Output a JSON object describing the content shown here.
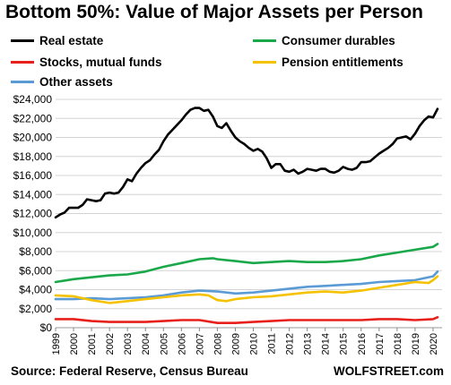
{
  "header": {
    "title": "Bottom 50%: Value of Major Assets per Person"
  },
  "footer": {
    "source": "Source: Federal Reserve, Census Bureau",
    "brand": "WOLFSTREET.com"
  },
  "chart_data": {
    "type": "line",
    "title": "Bottom 50%: Value of Major Assets per Person",
    "xlabel": "",
    "ylabel": "",
    "ylim": [
      0,
      24000
    ],
    "xlim": [
      1999,
      2020.5
    ],
    "yticks": [
      0,
      2000,
      4000,
      6000,
      8000,
      10000,
      12000,
      14000,
      16000,
      18000,
      20000,
      22000,
      24000
    ],
    "ytick_labels": [
      "$0",
      "$2,000",
      "$4,000",
      "$6,000",
      "$8,000",
      "$10,000",
      "$12,000",
      "$14,000",
      "$16,000",
      "$18,000",
      "$20,000",
      "$22,000",
      "$24,000"
    ],
    "xticks": [
      1999,
      2000,
      2001,
      2002,
      2003,
      2004,
      2005,
      2006,
      2007,
      2008,
      2009,
      2010,
      2011,
      2012,
      2013,
      2014,
      2015,
      2016,
      2017,
      2018,
      2019,
      2020
    ],
    "xtick_labels": [
      "1999",
      "2000",
      "2001",
      "2002",
      "2003",
      "2004",
      "2005",
      "2006",
      "2007",
      "2008",
      "2009",
      "2010",
      "2011",
      "2012",
      "2013",
      "2014",
      "2015",
      "2016",
      "2017",
      "2018",
      "2019",
      "2020"
    ],
    "grid": true,
    "legend_position": "top",
    "series": [
      {
        "name": "Real estate",
        "color": "#000000",
        "x": [
          1999.0,
          1999.25,
          1999.5,
          1999.75,
          2000.0,
          2000.25,
          2000.5,
          2000.75,
          2001.0,
          2001.25,
          2001.5,
          2001.75,
          2002.0,
          2002.25,
          2002.5,
          2002.75,
          2003.0,
          2003.25,
          2003.5,
          2003.75,
          2004.0,
          2004.25,
          2004.5,
          2004.75,
          2005.0,
          2005.25,
          2005.5,
          2005.75,
          2006.0,
          2006.25,
          2006.5,
          2006.75,
          2007.0,
          2007.25,
          2007.5,
          2007.75,
          2008.0,
          2008.25,
          2008.5,
          2008.75,
          2009.0,
          2009.25,
          2009.5,
          2009.75,
          2010.0,
          2010.25,
          2010.5,
          2010.75,
          2011.0,
          2011.25,
          2011.5,
          2011.75,
          2012.0,
          2012.25,
          2012.5,
          2012.75,
          2013.0,
          2013.25,
          2013.5,
          2013.75,
          2014.0,
          2014.25,
          2014.5,
          2014.75,
          2015.0,
          2015.25,
          2015.5,
          2015.75,
          2016.0,
          2016.25,
          2016.5,
          2016.75,
          2017.0,
          2017.25,
          2017.5,
          2017.75,
          2018.0,
          2018.25,
          2018.5,
          2018.75,
          2019.0,
          2019.25,
          2019.5,
          2019.75,
          2020.0,
          2020.25
        ],
        "values": [
          11600,
          11900,
          12100,
          12600,
          12600,
          12600,
          12900,
          13500,
          13400,
          13300,
          13400,
          14100,
          14200,
          14100,
          14200,
          14800,
          15600,
          15400,
          16200,
          16800,
          17300,
          17600,
          18200,
          18700,
          19600,
          20300,
          20800,
          21300,
          21800,
          22400,
          22900,
          23100,
          23100,
          22800,
          22900,
          22200,
          21200,
          21000,
          21500,
          20700,
          20000,
          19600,
          19300,
          18900,
          18600,
          18800,
          18500,
          17800,
          16800,
          17200,
          17200,
          16500,
          16400,
          16600,
          16200,
          16400,
          16700,
          16600,
          16500,
          16700,
          16700,
          16400,
          16300,
          16500,
          16900,
          16700,
          16600,
          16800,
          17400,
          17400,
          17500,
          17900,
          18300,
          18600,
          18900,
          19300,
          19900,
          20000,
          20100,
          19800,
          20400,
          21200,
          21800,
          22200,
          22100,
          23000
        ]
      },
      {
        "name": "Consumer durables",
        "color": "#1aa84a",
        "x": [
          1999,
          2000,
          2001,
          2002,
          2003,
          2004,
          2005,
          2006,
          2007,
          2007.75,
          2008,
          2009,
          2010,
          2011,
          2012,
          2013,
          2014,
          2015,
          2016,
          2017,
          2018,
          2019,
          2020,
          2020.25
        ],
        "values": [
          4800,
          5100,
          5300,
          5500,
          5600,
          5900,
          6400,
          6800,
          7200,
          7300,
          7200,
          7000,
          6800,
          6900,
          7000,
          6900,
          6900,
          7000,
          7200,
          7600,
          7900,
          8200,
          8500,
          8800
        ]
      },
      {
        "name": "Stocks, mutual funds",
        "color": "#e8201c",
        "x": [
          1999,
          2000,
          2001,
          2002,
          2003,
          2004,
          2005,
          2006,
          2007,
          2008,
          2009,
          2010,
          2011,
          2012,
          2013,
          2014,
          2015,
          2016,
          2017,
          2018,
          2019,
          2020,
          2020.25
        ],
        "values": [
          900,
          900,
          700,
          600,
          600,
          600,
          700,
          800,
          800,
          500,
          500,
          600,
          700,
          800,
          800,
          800,
          800,
          800,
          900,
          900,
          800,
          900,
          1100
        ]
      },
      {
        "name": "Pension entitlements",
        "color": "#f5c200",
        "x": [
          1999,
          2000,
          2001,
          2002,
          2003,
          2004,
          2005,
          2006,
          2007,
          2007.5,
          2008,
          2008.5,
          2009,
          2010,
          2011,
          2012,
          2013,
          2014,
          2015,
          2016,
          2017,
          2018,
          2019,
          2019.75,
          2020,
          2020.25
        ],
        "values": [
          3400,
          3300,
          2900,
          2600,
          2800,
          3000,
          3200,
          3400,
          3500,
          3400,
          2900,
          2800,
          3000,
          3200,
          3300,
          3500,
          3700,
          3800,
          3700,
          3900,
          4200,
          4500,
          4800,
          4700,
          5000,
          5400
        ]
      },
      {
        "name": "Other assets",
        "color": "#5b9bd5",
        "x": [
          1999,
          2000,
          2001,
          2002,
          2003,
          2004,
          2005,
          2006,
          2007,
          2008,
          2009,
          2010,
          2011,
          2012,
          2013,
          2014,
          2015,
          2016,
          2017,
          2018,
          2019,
          2020,
          2020.25
        ],
        "values": [
          3000,
          3000,
          3100,
          3000,
          3100,
          3200,
          3400,
          3700,
          3900,
          3800,
          3600,
          3700,
          3900,
          4100,
          4300,
          4400,
          4500,
          4600,
          4800,
          4900,
          5000,
          5400,
          5900
        ]
      }
    ]
  }
}
